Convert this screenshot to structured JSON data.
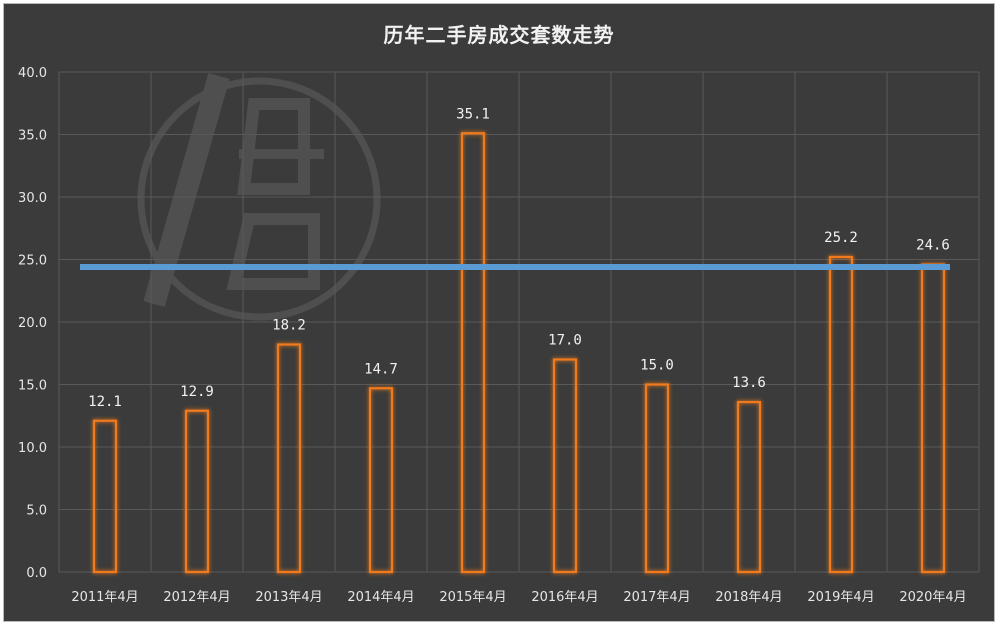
{
  "chart_data": {
    "type": "bar",
    "title": "历年二手房成交套数走势",
    "categories": [
      "2011年4月",
      "2012年4月",
      "2013年4月",
      "2014年4月",
      "2015年4月",
      "2016年4月",
      "2017年4月",
      "2018年4月",
      "2019年4月",
      "2020年4月"
    ],
    "values": [
      12.1,
      12.9,
      18.2,
      14.7,
      35.1,
      17.0,
      15.0,
      13.6,
      25.2,
      24.6
    ],
    "data_labels": [
      "12.1",
      "12.9",
      "18.2",
      "14.7",
      "35.1",
      "17.0",
      "15.0",
      "13.6",
      "25.2",
      "24.6"
    ],
    "reference_line": 24.4,
    "ylim": [
      0,
      40
    ],
    "yticks": [
      "0.0",
      "5.0",
      "10.0",
      "15.0",
      "20.0",
      "25.0",
      "30.0",
      "35.0",
      "40.0"
    ],
    "grid": true,
    "legend": "none",
    "xlabel": "",
    "ylabel": ""
  },
  "colors": {
    "background": "#3b3b3b",
    "bar_outline": "#f07a1a",
    "bar_glow": "#ff8c1a",
    "reference_line": "#5b9bd5",
    "grid": "#595959",
    "text": "#e6e6e6"
  }
}
